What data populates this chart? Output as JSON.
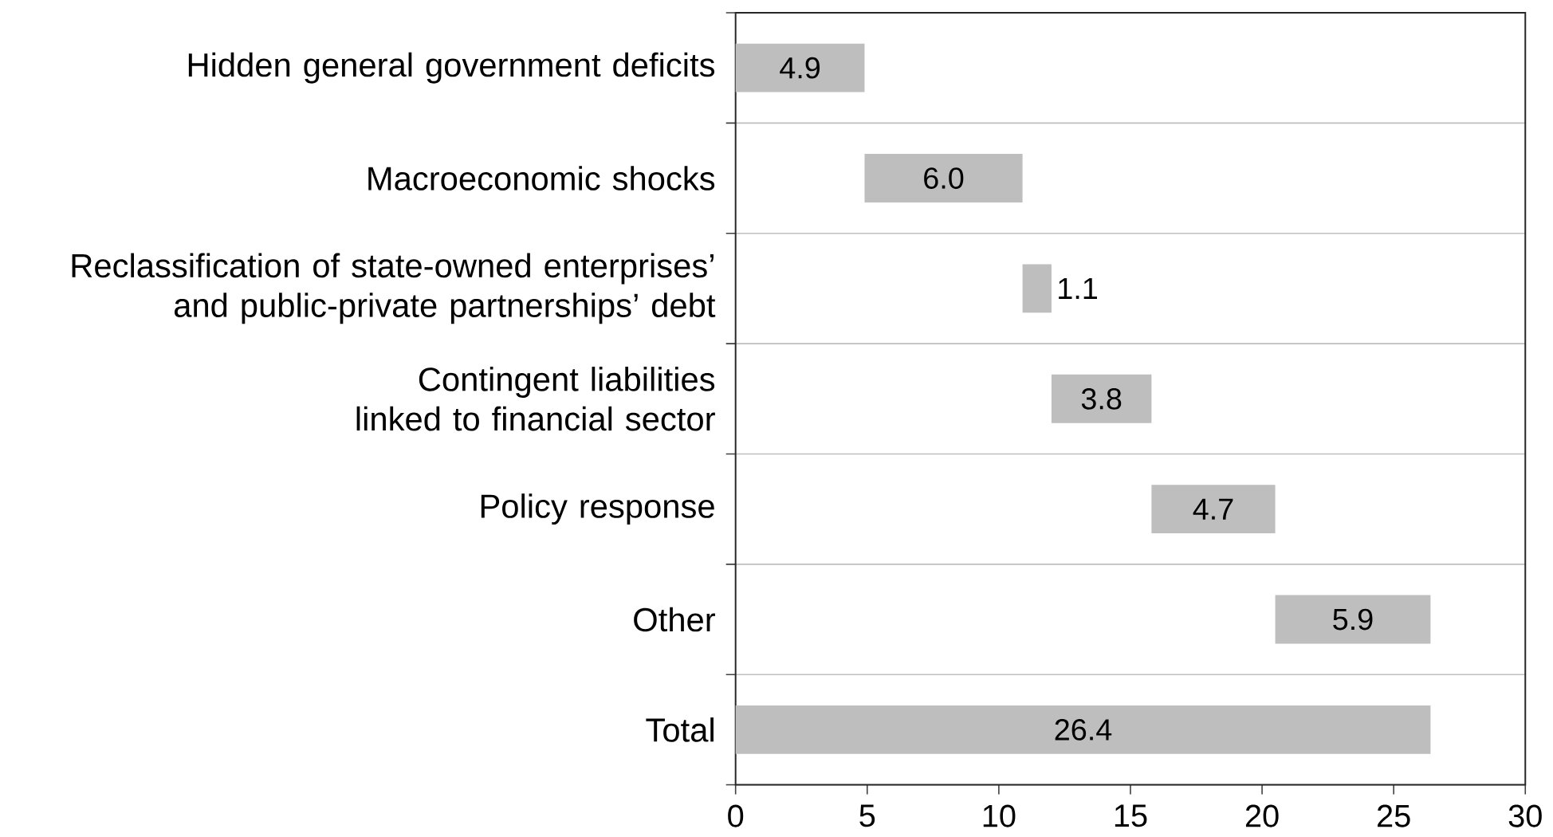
{
  "chart_data": {
    "type": "bar",
    "orientation": "horizontal",
    "categories": [
      "Hidden general government deficits",
      "Macroeconomic shocks",
      "Reclassification of state-owned enterprises’ and public-private partnerships’ debt",
      "Contingent liabilities linked to financial sector",
      "Policy response",
      "Other",
      "Total"
    ],
    "values": [
      4.9,
      6.0,
      1.1,
      3.8,
      4.7,
      5.9,
      26.4
    ],
    "base": [
      0,
      4.9,
      10.9,
      12.0,
      15.8,
      20.5,
      0
    ],
    "value_labels": [
      "4.9",
      "6.0",
      "1.1",
      "3.8",
      "4.7",
      "5.9",
      "26.4"
    ],
    "color": "#bebebe",
    "xlim": [
      0,
      30
    ],
    "xticks": [
      0,
      5,
      10,
      15,
      20,
      25,
      30
    ],
    "grid": "y"
  }
}
